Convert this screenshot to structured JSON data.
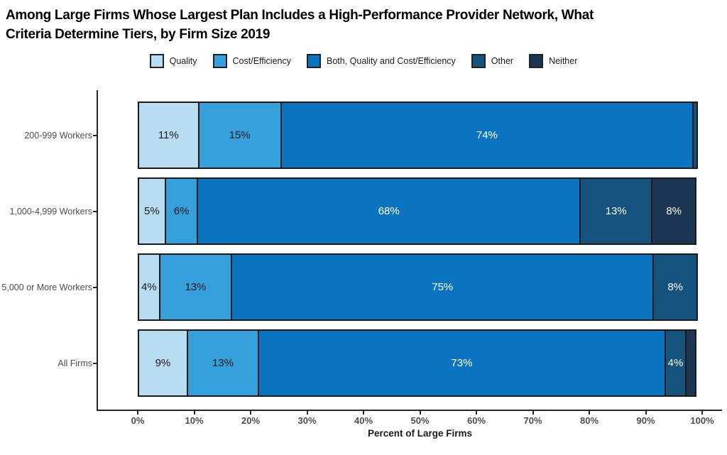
{
  "title": {
    "line1": "Among Large Firms Whose Largest Plan Includes a High-Performance Provider Network, What",
    "line2": "Criteria Determine Tiers, by Firm Size 2019"
  },
  "chart_data": {
    "type": "bar",
    "variant": "horizontal_stacked",
    "title": "Among Large Firms Whose Largest Plan Includes a High-Performance Provider Network, What Criteria Determine Tiers, by Firm Size 2019",
    "xlabel": "Percent of Large Firms",
    "xlim": [
      0,
      100
    ],
    "x_ticks": [
      "0%",
      "10%",
      "20%",
      "30%",
      "40%",
      "50%",
      "60%",
      "70%",
      "80%",
      "90%",
      "100%"
    ],
    "legend_position": "top",
    "grid": false,
    "categories": [
      "200-999 Workers",
      "1,000-4,999 Workers",
      "5,000 or More Workers",
      "All Firms"
    ],
    "series": [
      {
        "name": "Quality",
        "color": "#b8dcf2",
        "label_color": "#1a1a1a",
        "values": [
          11,
          5,
          4,
          9
        ]
      },
      {
        "name": "Cost/Efficiency",
        "color": "#36a0dc",
        "label_color": "#1a1a1a",
        "values": [
          15,
          6,
          13,
          13
        ]
      },
      {
        "name": "Both, Quality and Cost/Efficiency",
        "color": "#0b74c0",
        "label_color": "#ffffff",
        "values": [
          74,
          68,
          75,
          73
        ]
      },
      {
        "name": "Other",
        "color": "#15527e",
        "label_color": "#ffffff",
        "values": [
          1,
          13,
          8,
          4
        ]
      },
      {
        "name": "Neither",
        "color": "#1c3552",
        "label_color": "#ffffff",
        "values": [
          0,
          8,
          0,
          2
        ]
      }
    ],
    "label_suffix": "%",
    "label_min_value": 4
  }
}
